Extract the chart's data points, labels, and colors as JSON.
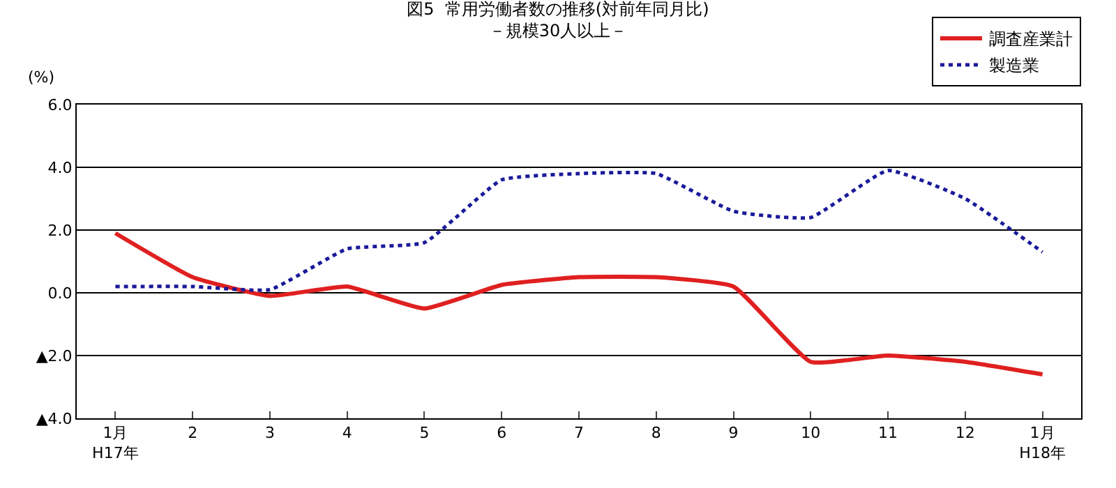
{
  "chart_data": {
    "type": "line",
    "title": "図5  常用労働者数の推移(対前年同月比)\n－規模30人以上－",
    "ylabel": "(%)",
    "categories": [
      "1月\nH17年",
      "2",
      "3",
      "4",
      "5",
      "6",
      "7",
      "8",
      "9",
      "10",
      "11",
      "12",
      "1月\nH18年"
    ],
    "series": [
      {
        "name": "調査産業計",
        "color": "#e02020",
        "line_style": "solid",
        "values": [
          1.9,
          0.5,
          -0.1,
          0.2,
          -0.5,
          0.25,
          0.5,
          0.5,
          0.2,
          -2.2,
          -2.0,
          -2.2,
          -2.6
        ]
      },
      {
        "name": "製造業",
        "color": "#1a1a9a",
        "line_style": "dotted",
        "values": [
          0.2,
          0.2,
          0.1,
          1.4,
          1.6,
          3.6,
          3.8,
          3.8,
          2.6,
          2.4,
          3.9,
          3.0,
          1.3
        ]
      }
    ],
    "ylim": [
      -4,
      6
    ],
    "yticks": [
      {
        "value": 6,
        "label": "6.0"
      },
      {
        "value": 4,
        "label": "4.0"
      },
      {
        "value": 2,
        "label": "2.0"
      },
      {
        "value": 0,
        "label": "0.0"
      },
      {
        "value": -2,
        "label": "▲2.0"
      },
      {
        "value": -4,
        "label": "▲4.0"
      }
    ],
    "grid": "y",
    "legend": "top right",
    "marker": "none"
  }
}
